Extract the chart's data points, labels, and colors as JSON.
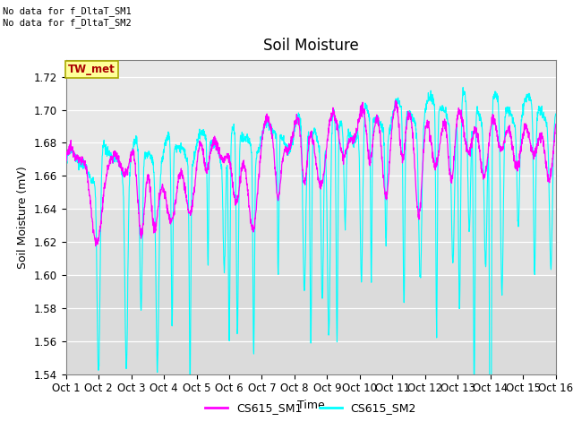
{
  "title": "Soil Moisture",
  "ylabel": "Soil Moisture (mV)",
  "xlabel": "Time",
  "xlim": [
    0,
    15
  ],
  "ylim": [
    1.54,
    1.73
  ],
  "yticks": [
    1.54,
    1.56,
    1.58,
    1.6,
    1.62,
    1.64,
    1.66,
    1.68,
    1.7,
    1.72
  ],
  "xtick_labels": [
    "Oct 1",
    "Oct 2",
    "Oct 3",
    "Oct 4",
    "Oct 5",
    "Oct 6",
    "Oct 7",
    "Oct 8",
    "Oct 9",
    "Oct 10",
    "Oct 11",
    "Oct 12",
    "Oct 13",
    "Oct 14",
    "Oct 15",
    "Oct 16"
  ],
  "color_sm1": "#FF00FF",
  "color_sm2": "#00FFFF",
  "legend_sm1": "CS615_SM1",
  "legend_sm2": "CS615_SM2",
  "annotation_text": "No data for f_DltaT_SM1\nNo data for f_DltaT_SM2",
  "tw_met_label": "TW_met",
  "tw_met_color": "#AA0000",
  "tw_met_bg": "#FFFF99",
  "tw_met_border": "#AAAA00",
  "background_plot": "#E8E8E8",
  "background_alt": "#D8D8D8",
  "title_fontsize": 12,
  "axis_fontsize": 9,
  "tick_fontsize": 8.5,
  "figsize": [
    6.4,
    4.8
  ],
  "dpi": 100
}
